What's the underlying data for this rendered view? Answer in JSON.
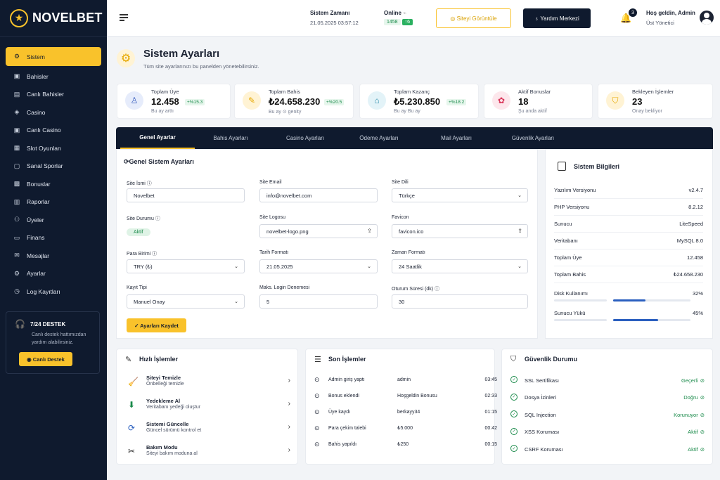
{
  "brand": {
    "name": "NOVELBET"
  },
  "sidebar": {
    "items": [
      {
        "label": "Sistem",
        "icon": "gear-icon"
      },
      {
        "label": "Bahisler",
        "icon": "ticket-icon"
      },
      {
        "label": "Canlı Bahisler",
        "icon": "live-icon"
      },
      {
        "label": "Casino",
        "icon": "casino-icon"
      },
      {
        "label": "Canlı Casino",
        "icon": "live-casino-icon"
      },
      {
        "label": "Slot Oyunları",
        "icon": "slot-icon"
      },
      {
        "label": "Sanal Sporlar",
        "icon": "virtual-sport-icon"
      },
      {
        "label": "Bonuslar",
        "icon": "gift-icon"
      },
      {
        "label": "Raporlar",
        "icon": "chart-icon"
      },
      {
        "label": "Üyeler",
        "icon": "users-icon"
      },
      {
        "label": "Finans",
        "icon": "finance-icon"
      },
      {
        "label": "Mesajlar",
        "icon": "mail-icon"
      },
      {
        "label": "Ayarlar",
        "icon": "settings-icon"
      },
      {
        "label": "Log Kayıtları",
        "icon": "log-icon"
      }
    ],
    "support": {
      "title": "7/24 DESTEK",
      "desc": "Canlı destek hattımızdan yardım alabilirsiniz.",
      "button": "Canlı Destek"
    }
  },
  "header": {
    "time_label": "Sistem Zamanı",
    "time_value": "21.05.2025 03:57:12",
    "online_label": "Online",
    "online_count": "1458",
    "online_delta": "↑6",
    "view_site": "Siteyi Görüntüle",
    "help": "Yardım Merkezi",
    "notif_count": "3",
    "welcome": "Hoş geldin, Admin",
    "role": "Üst Yönetici"
  },
  "page": {
    "title": "Sistem Ayarları",
    "subtitle": "Tüm site ayarlarınızı bu panelden yönetebilirsiniz."
  },
  "stats": [
    {
      "title": "Toplam Üye",
      "value": "12.458",
      "trend": "+%15.3",
      "desc": "Bu ay arttı",
      "color": "#e6ecfb",
      "icon_color": "#3a5fbf"
    },
    {
      "title": "Toplam Bahis",
      "value": "₺24.658.230",
      "trend": "+%20.5",
      "desc": "Bu ay ⊙ genity",
      "color": "#fff3d4",
      "icon_color": "#e6a800"
    },
    {
      "title": "Toplam Kazanç",
      "value": "₺5.230.850",
      "trend": "+%18.2",
      "desc": "Bu ay Bu ay",
      "color": "#e3f3f8",
      "icon_color": "#2a8aa8"
    },
    {
      "title": "Aktif Bonuslar",
      "value": "18",
      "trend": "",
      "desc": "Şu anda aktif",
      "color": "#fde7ec",
      "icon_color": "#d9365a"
    },
    {
      "title": "Bekleyen İşlemler",
      "value": "23",
      "trend": "",
      "desc": "Onay bekliyor",
      "color": "#fff3d4",
      "icon_color": "#e6a800"
    }
  ],
  "tabs": [
    "Genel Ayarlar",
    "Bahis Ayarları",
    "Casino Ayarları",
    "Ödeme Ayarları",
    "Mail Ayarları",
    "Güvenlik Ayarları"
  ],
  "form": {
    "title": "Genel Sistem Ayarları",
    "site_name_label": "Site İsmi ⓘ",
    "site_name": "Novelbet",
    "site_email_label": "Site Email",
    "site_email": "info@novelbet.com",
    "site_lang_label": "Site Dili",
    "site_lang": "Türkçe",
    "site_status_label": "Site Durumu ⓘ",
    "site_status": "Aktif",
    "site_logo_label": "Site Logosu",
    "site_logo": "novelbet-logo.png",
    "favicon_label": "Favicon",
    "favicon": "favicon.ico",
    "currency_label": "Para Birimi ⓘ",
    "currency": "TRY (₺)",
    "date_format_label": "Tarih Formatı",
    "date_format": "21.05.2025",
    "time_format_label": "Zaman Formatı",
    "time_format": "24 Saatlik",
    "reg_type_label": "Kayıt Tipi",
    "reg_type": "Manuel Onay",
    "max_login_label": "Maks. Login Denemesi",
    "max_login": "5",
    "session_label": "Oturum Süresi (dk) ⓘ",
    "session": "30",
    "save": "✓ Ayarları Kaydet"
  },
  "sysinfo": {
    "title": "Sistem Bilgileri",
    "rows": [
      {
        "k": "Yazılım Versiyonu",
        "v": "v2.4.7"
      },
      {
        "k": "PHP Versiyonu",
        "v": "8.2.12"
      },
      {
        "k": "Sunucu",
        "v": "LiteSpeed"
      },
      {
        "k": "Veritabanı",
        "v": "MySQL 8.0"
      },
      {
        "k": "Toplam Üye",
        "v": "12.458"
      },
      {
        "k": "Toplam Bahis",
        "v": "₺24.658.230"
      }
    ],
    "disk_label": "Disk Kullanımı",
    "disk_value": "32%",
    "disk_pct": 32,
    "load_label": "Sunucu Yükü",
    "load_value": "45%",
    "load_pct": 45
  },
  "quick": {
    "title": "Hızlı İşlemler",
    "items": [
      {
        "t": "Siteyi Temizle",
        "d": "Önbelleği temizle",
        "icon": "broom-icon",
        "ch": "🧹"
      },
      {
        "t": "Yedekleme Al",
        "d": "Veritabanı yedeği oluştur",
        "icon": "backup-icon",
        "ch": "⬇"
      },
      {
        "t": "Sistemi Güncelle",
        "d": "Güncel sürümü kontrol et",
        "icon": "refresh-icon",
        "ch": "⟳"
      },
      {
        "t": "Bakım Modu",
        "d": "Siteyi bakım moduna al",
        "icon": "tools-icon",
        "ch": "✂"
      }
    ]
  },
  "recent": {
    "title": "Son İşlemler",
    "items": [
      {
        "a": "Admin giriş yaptı",
        "u": "admin",
        "t": "03:45"
      },
      {
        "a": "Bonus eklendi",
        "u": "Hoşgeldin Bonusu",
        "t": "02:33"
      },
      {
        "a": "Üye kaydı",
        "u": "berkayy34",
        "t": "01:15"
      },
      {
        "a": "Para çekim talebi",
        "u": "₺5.000",
        "t": "00:42"
      },
      {
        "a": "Bahis yapıldı",
        "u": "₺250",
        "t": "00:15"
      }
    ]
  },
  "security": {
    "title": "Güvenlik Durumu",
    "items": [
      {
        "k": "SSL Sertifikası",
        "v": "Geçerli"
      },
      {
        "k": "Dosya İzinleri",
        "v": "Doğru"
      },
      {
        "k": "SQL Injection",
        "v": "Korunuyor"
      },
      {
        "k": "XSS Koruması",
        "v": "Aktif"
      },
      {
        "k": "CSRF Koruması",
        "v": "Aktif"
      }
    ]
  }
}
